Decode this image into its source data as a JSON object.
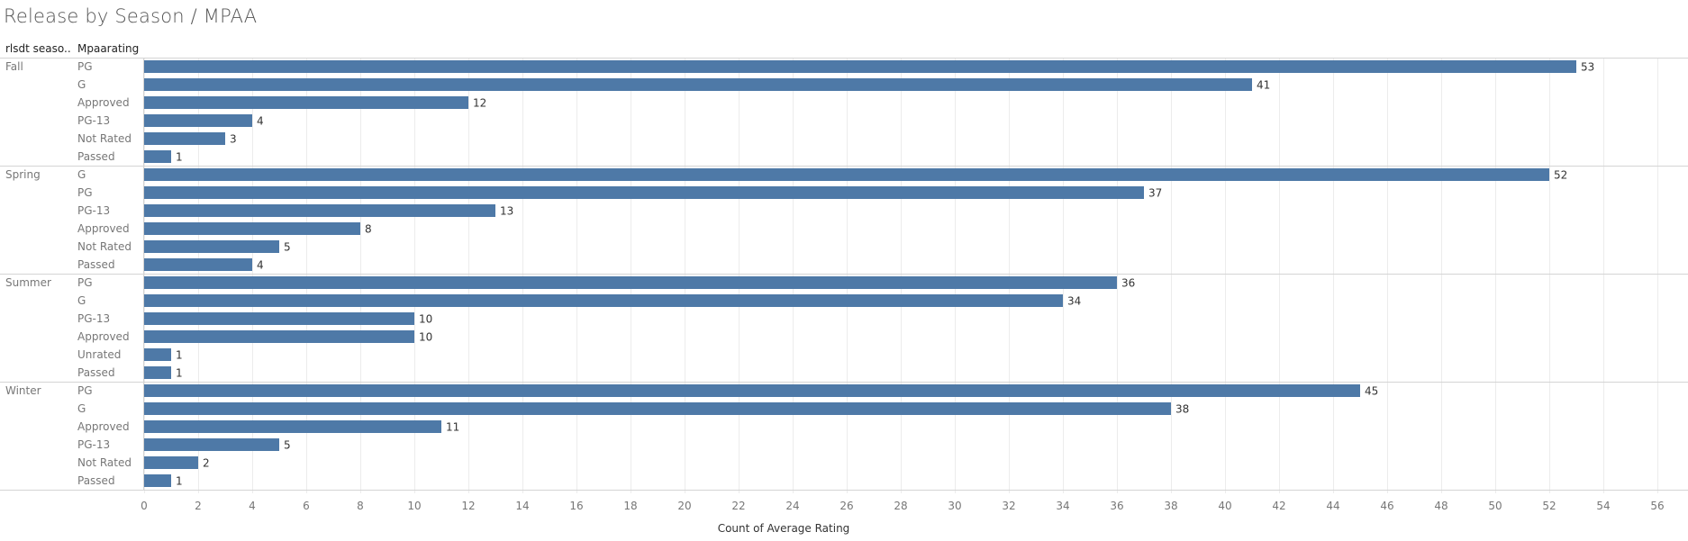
{
  "title": "Release by Season / MPAA",
  "headers": {
    "season": "rlsdt seaso..",
    "rating": "Mpaarating"
  },
  "colors": {
    "bar": "#4e79a7",
    "grid": "#ececec",
    "border": "#d4d4d4",
    "label": "#777777",
    "value": "#333333"
  },
  "chart_data": {
    "type": "bar",
    "orientation": "horizontal",
    "title": "Release by Season / MPAA",
    "xlabel": "Count of Average Rating",
    "xlim": [
      0,
      56
    ],
    "xticks": [
      0,
      2,
      4,
      6,
      8,
      10,
      12,
      14,
      16,
      18,
      20,
      22,
      24,
      26,
      28,
      30,
      32,
      34,
      36,
      38,
      40,
      42,
      44,
      46,
      48,
      50,
      52,
      54,
      56
    ],
    "groups": [
      {
        "season": "Fall",
        "bars": [
          {
            "rating": "PG",
            "value": 53
          },
          {
            "rating": "G",
            "value": 41
          },
          {
            "rating": "Approved",
            "value": 12
          },
          {
            "rating": "PG-13",
            "value": 4
          },
          {
            "rating": "Not Rated",
            "value": 3
          },
          {
            "rating": "Passed",
            "value": 1
          }
        ]
      },
      {
        "season": "Spring",
        "bars": [
          {
            "rating": "G",
            "value": 52
          },
          {
            "rating": "PG",
            "value": 37
          },
          {
            "rating": "PG-13",
            "value": 13
          },
          {
            "rating": "Approved",
            "value": 8
          },
          {
            "rating": "Not Rated",
            "value": 5
          },
          {
            "rating": "Passed",
            "value": 4
          }
        ]
      },
      {
        "season": "Summer",
        "bars": [
          {
            "rating": "PG",
            "value": 36
          },
          {
            "rating": "G",
            "value": 34
          },
          {
            "rating": "PG-13",
            "value": 10
          },
          {
            "rating": "Approved",
            "value": 10
          },
          {
            "rating": "Unrated",
            "value": 1
          },
          {
            "rating": "Passed",
            "value": 1
          }
        ]
      },
      {
        "season": "Winter",
        "bars": [
          {
            "rating": "PG",
            "value": 45
          },
          {
            "rating": "G",
            "value": 38
          },
          {
            "rating": "Approved",
            "value": 11
          },
          {
            "rating": "PG-13",
            "value": 5
          },
          {
            "rating": "Not Rated",
            "value": 2
          },
          {
            "rating": "Passed",
            "value": 1
          }
        ]
      }
    ]
  }
}
